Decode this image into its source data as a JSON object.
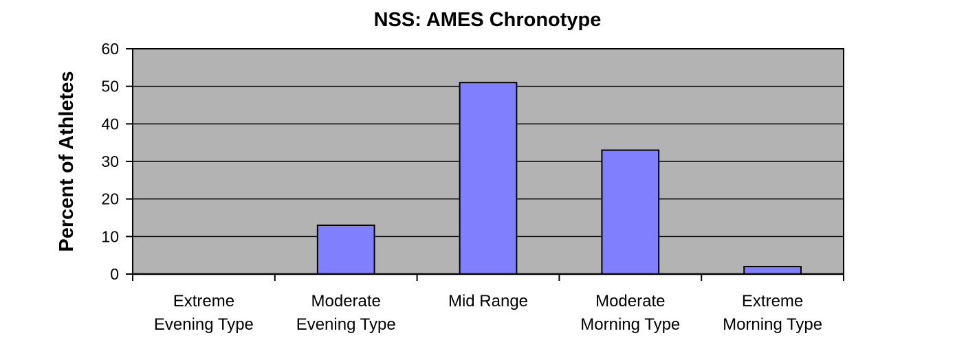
{
  "chart_data": {
    "type": "bar",
    "title": "NSS: AMES Chronotype",
    "xlabel": "",
    "ylabel": "Percent of Athletes",
    "ylim": [
      0,
      60
    ],
    "yticks": [
      0,
      10,
      20,
      30,
      40,
      50,
      60
    ],
    "grid": true,
    "categories": [
      [
        "Extreme",
        "Evening Type"
      ],
      [
        "Moderate",
        "Evening Type"
      ],
      [
        "Mid Range"
      ],
      [
        "Moderate",
        "Morning Type"
      ],
      [
        "Extreme",
        "Morning Type"
      ]
    ],
    "values": [
      0,
      13,
      51,
      33,
      2
    ],
    "colors": {
      "bar": "#8080ff",
      "plot_background": "#b3b3b3",
      "gridline": "#000000"
    }
  }
}
